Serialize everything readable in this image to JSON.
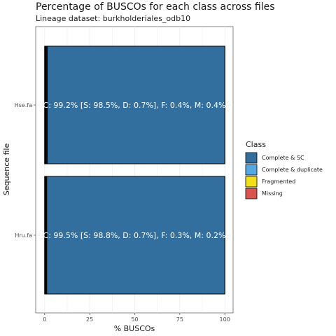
{
  "chart_data": {
    "type": "bar",
    "orientation": "horizontal",
    "stacked": true,
    "title": "Percentage of BUSCOs for each class across files",
    "subtitle": "Lineage dataset: burkholderiales_odb10",
    "xlabel": "% BUSCOs",
    "ylabel": "Sequence file",
    "xlim": [
      0,
      100
    ],
    "xticks": [
      0,
      25,
      50,
      75,
      100
    ],
    "grid": true,
    "legend_position": "right",
    "legend_title": "Class",
    "categories": [
      "Hse.fa",
      "Hru.fa"
    ],
    "series": [
      {
        "name": "Complete & SC",
        "color": "#336f9e",
        "values": [
          98.5,
          98.8
        ]
      },
      {
        "name": "Complete & duplicate",
        "color": "#56a8e0",
        "values": [
          0.7,
          0.7
        ]
      },
      {
        "name": "Fragmented",
        "color": "#f0e014",
        "values": [
          0.4,
          0.3
        ]
      },
      {
        "name": "Missing",
        "color": "#d9534f",
        "values": [
          0.4,
          0.2
        ]
      }
    ],
    "bar_labels": [
      "C: 99.2% [S: 98.5%, D: 0.7%], F: 0.4%, M: 0.4%",
      "C: 99.5% [S: 98.8%, D: 0.7%], F: 0.3%, M: 0.2%"
    ]
  }
}
